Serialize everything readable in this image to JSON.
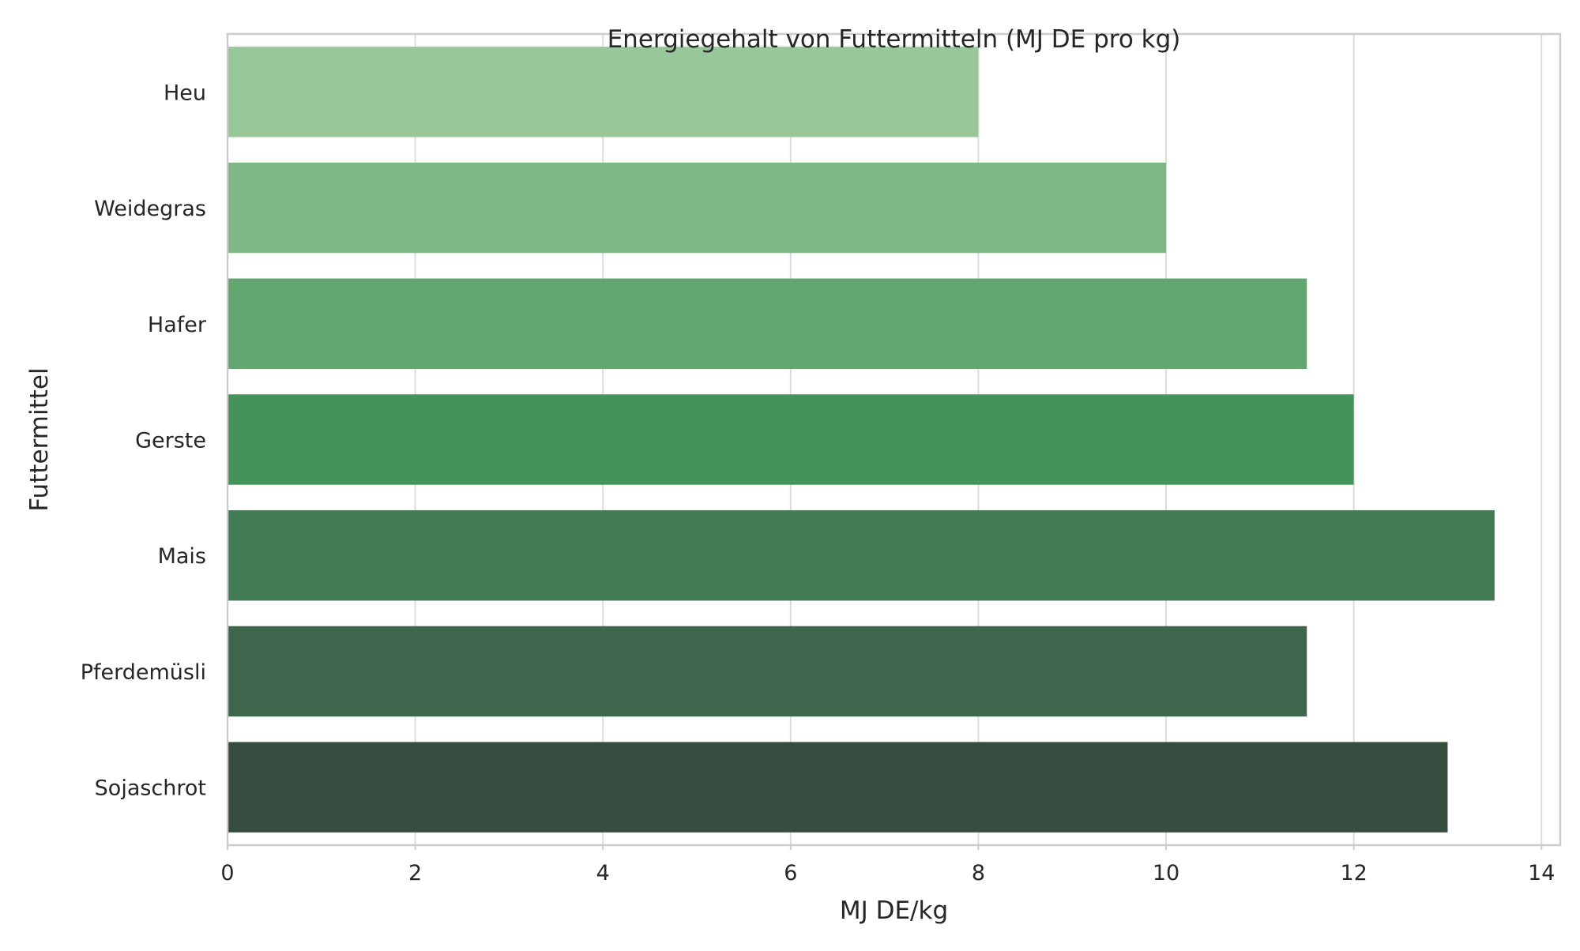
{
  "chart_data": {
    "type": "bar",
    "orientation": "horizontal",
    "title": "Energiegehalt von Futtermitteln (MJ DE pro kg)",
    "xlabel": "MJ DE/kg",
    "ylabel": "Futtermittel",
    "categories": [
      "Heu",
      "Weidegras",
      "Hafer",
      "Gerste",
      "Mais",
      "Pferdemüsli",
      "Sojaschrot"
    ],
    "values": [
      8.0,
      10.0,
      11.5,
      12.0,
      13.5,
      11.5,
      13.0
    ],
    "colors": [
      "#98c79a",
      "#7db886",
      "#62a670",
      "#45935a",
      "#427c55",
      "#3d664c",
      "#374d3f"
    ],
    "xlim": [
      0,
      14.2
    ],
    "xticks": [
      0,
      2,
      4,
      6,
      8,
      10,
      12,
      14
    ],
    "grid": true,
    "legend": "none",
    "style": {
      "grid_color": "#dcdcdc",
      "spine_color": "#cccccc",
      "text_color": "#262626"
    }
  }
}
